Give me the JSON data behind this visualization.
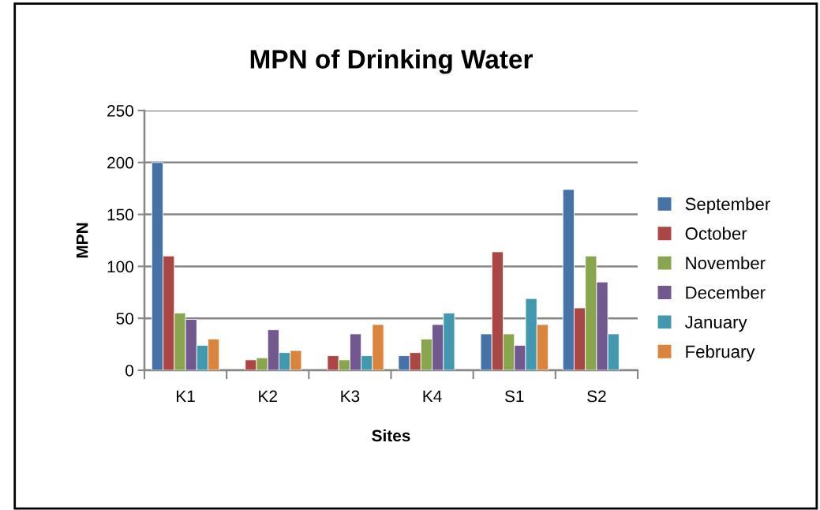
{
  "chart_data": {
    "type": "bar",
    "title": "MPN of Drinking Water",
    "xlabel": "Sites",
    "ylabel": "MPN",
    "categories": [
      "K1",
      "K2",
      "K3",
      "K4",
      "S1",
      "S2"
    ],
    "series": [
      {
        "name": "September",
        "color": "#4572a7",
        "values": [
          200,
          null,
          null,
          14,
          35,
          174
        ]
      },
      {
        "name": "October",
        "color": "#aa4643",
        "values": [
          110,
          10,
          14,
          17,
          114,
          60
        ]
      },
      {
        "name": "November",
        "color": "#89a54e",
        "values": [
          55,
          12,
          10,
          30,
          35,
          110
        ]
      },
      {
        "name": "December",
        "color": "#71588f",
        "values": [
          49,
          39,
          35,
          44,
          24,
          85
        ]
      },
      {
        "name": "January",
        "color": "#4198af",
        "values": [
          24,
          17,
          14,
          55,
          69,
          35
        ]
      },
      {
        "name": "February",
        "color": "#db843d",
        "values": [
          30,
          19,
          44,
          null,
          44,
          null
        ]
      }
    ],
    "ylim": [
      0,
      250
    ],
    "yticks": [
      0,
      50,
      100,
      150,
      200,
      250
    ],
    "grid": "y",
    "legend": "right"
  }
}
